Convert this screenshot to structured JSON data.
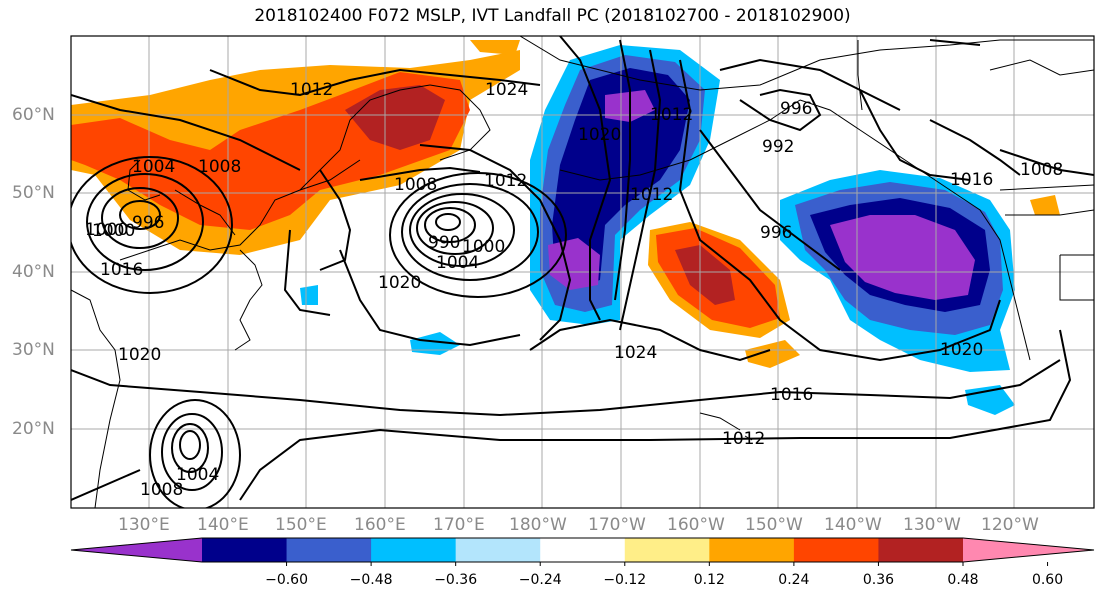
{
  "title": "2018102400 F072 MSLP, IVT Landfall PC (2018102700 - 2018102900)",
  "lat_labels": [
    "60°N",
    "50°N",
    "40°N",
    "30°N",
    "20°N"
  ],
  "lon_labels": [
    "130°E",
    "140°E",
    "150°E",
    "160°E",
    "170°E",
    "180°W",
    "170°W",
    "160°W",
    "150°W",
    "140°W",
    "130°W",
    "120°W"
  ],
  "colorbar": {
    "colors": [
      "#9932cc",
      "#00008b",
      "#3a5fcd",
      "#00bfff",
      "#b3e5fc",
      "#ffffff",
      "#ffee88",
      "#ffa500",
      "#ff4500",
      "#b22222",
      "#ff88b0"
    ],
    "tick_labels": [
      "-0.60",
      "-0.48",
      "-0.36",
      "-0.24",
      "-0.12",
      "0.12",
      "0.24",
      "0.36",
      "0.48",
      "0.60"
    ]
  },
  "contour_labels": [
    "1012",
    "1024",
    "1004",
    "1008",
    "996",
    "1000",
    "1008",
    "1012",
    "990",
    "1000",
    "1004",
    "1020",
    "1020",
    "1012",
    "1012",
    "992",
    "996",
    "996",
    "1016",
    "1008",
    "1024",
    "1016",
    "1012",
    "1020",
    "1004",
    "1008",
    "1020",
    "1016",
    "1000"
  ]
}
